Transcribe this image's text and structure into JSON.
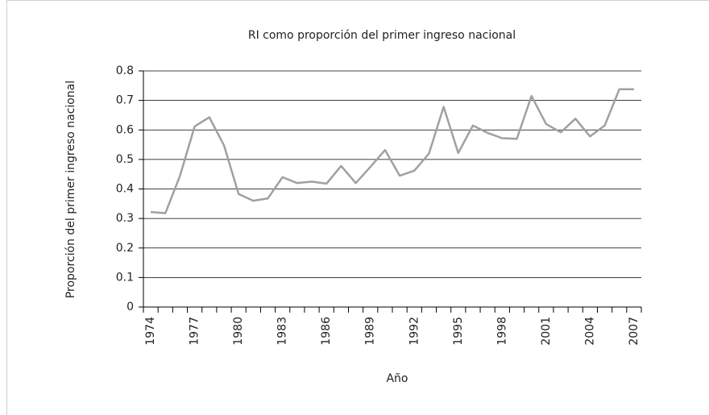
{
  "chart_data": {
    "type": "line",
    "title": "RI como proporción del primer ingreso nacional",
    "x_label": "Año",
    "y_label": "Proporción del primer ingreso nacional",
    "categories": [
      "1974",
      null,
      null,
      "1977",
      null,
      null,
      "1980",
      null,
      null,
      "1983",
      null,
      null,
      "1986",
      null,
      null,
      "1989",
      null,
      null,
      "1992",
      null,
      null,
      "1995",
      null,
      null,
      "1998",
      null,
      null,
      "2001",
      null,
      null,
      "2004",
      null,
      null,
      "2007"
    ],
    "series": [
      {
        "name": "RI",
        "color": "#a0a0a0",
        "values": [
          0.322,
          0.318,
          0.445,
          0.612,
          0.643,
          0.548,
          0.383,
          0.36,
          0.368,
          0.44,
          0.42,
          0.425,
          0.418,
          0.478,
          0.42,
          0.475,
          0.532,
          0.445,
          0.462,
          0.52,
          0.678,
          0.522,
          0.615,
          0.59,
          0.572,
          0.57,
          0.715,
          0.62,
          0.592,
          0.638,
          0.578,
          0.615,
          0.738,
          0.738
        ]
      }
    ],
    "ylim": [
      0,
      0.8
    ],
    "yticks": [
      0,
      0.1,
      0.2,
      0.3,
      0.4,
      0.5,
      0.6,
      0.7,
      0.8
    ],
    "grid": true
  }
}
